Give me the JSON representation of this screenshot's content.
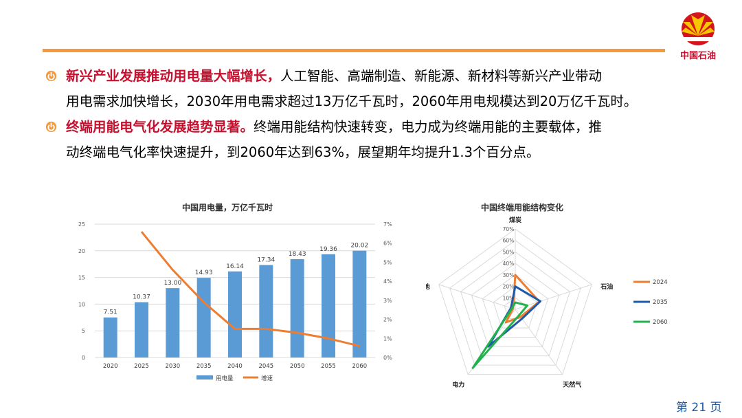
{
  "brand": {
    "logo_text": "中国石油",
    "accent_color": "#f39a3c",
    "brand_red": "#c8102e"
  },
  "bullets": [
    {
      "highlight": "新兴产业发展推动用电量大幅增长，",
      "lines": [
        "人工智能、高端制造、新能源、新材料等新兴产业带动",
        "用电需求加快增长，2030年用电需求超过13万亿千瓦时，2060年用电规模达到20万亿千瓦时。"
      ]
    },
    {
      "highlight": "终端用能电气化发展趋势显著。",
      "lines": [
        "终端用能结构快速转变，电力成为终端用能的主要载体，推",
        "动终端电气化率快速提升，到2060年达到63%，展望期年均提升1.3个百分点。"
      ]
    }
  ],
  "page": {
    "number_text": "第 21 页"
  },
  "chart_data": [
    {
      "type": "bar",
      "title": "中国用电量，万亿千瓦时",
      "categories": [
        "2020",
        "2025",
        "2030",
        "2035",
        "2040",
        "2045",
        "2050",
        "2055",
        "2060"
      ],
      "series": [
        {
          "name": "用电量",
          "type": "bar",
          "axis": "left",
          "color": "#5b9bd5",
          "values": [
            7.51,
            10.37,
            13.0,
            14.93,
            16.14,
            17.34,
            18.43,
            19.36,
            20.02
          ],
          "labels": [
            "7.51",
            "10.37",
            "13.00",
            "14.93",
            "16.14",
            "17.34",
            "18.43",
            "19.36",
            "20.02"
          ]
        },
        {
          "name": "增速",
          "type": "line",
          "axis": "right",
          "color": "#ed7d31",
          "values": [
            null,
            6.6,
            4.6,
            2.9,
            1.5,
            1.5,
            1.3,
            1.0,
            0.6
          ]
        }
      ],
      "ylim": [
        0,
        25
      ],
      "yticks": [
        "0",
        "5",
        "10",
        "15",
        "20",
        "25"
      ],
      "y2lim": [
        0,
        7
      ],
      "y2ticks": [
        "0%",
        "1%",
        "2%",
        "3%",
        "4%",
        "5%",
        "6%",
        "7%"
      ],
      "grid": true,
      "legend": "bottom"
    },
    {
      "type": "radar",
      "title": "中国终端用能结构变化",
      "axes": [
        "煤炭",
        "石油",
        "天然气",
        "电力",
        "其他"
      ],
      "rlim": [
        0,
        70
      ],
      "rticks": [
        "",
        "10%",
        "20%",
        "30%",
        "40%",
        "50%",
        "60%",
        "70%"
      ],
      "series": [
        {
          "name": "2024",
          "color": "#ed7d31",
          "values": [
            30,
            22,
            8,
            14,
            2
          ]
        },
        {
          "name": "2035",
          "color": "#1f5aa8",
          "values": [
            20,
            23,
            10,
            40,
            4
          ]
        },
        {
          "name": "2060",
          "color": "#22b24c",
          "values": [
            6,
            11,
            6,
            63,
            3
          ]
        }
      ],
      "legend": "right"
    }
  ]
}
